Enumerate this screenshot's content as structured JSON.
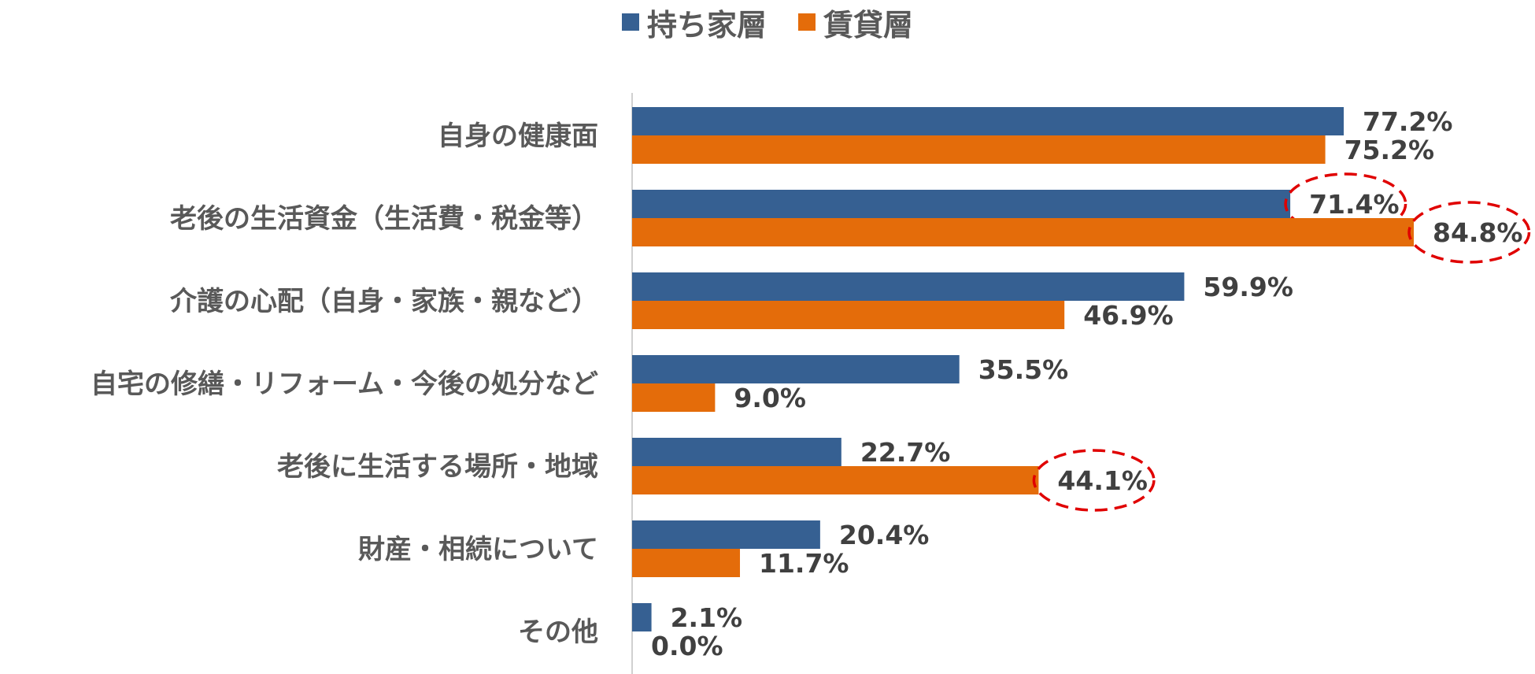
{
  "chart_data": {
    "type": "bar",
    "orientation": "horizontal",
    "categories": [
      "自身の健康面",
      "老後の生活資金（生活費・税金等）",
      "介護の心配（自身・家族・親など）",
      "自宅の修繕・リフォーム・今後の処分など",
      "老後に生活する場所・地域",
      "財産・相続について",
      "その他"
    ],
    "series": [
      {
        "name": "持ち家層",
        "color": "#366092",
        "values": [
          77.2,
          71.4,
          59.9,
          35.5,
          22.7,
          20.4,
          2.1
        ],
        "labels": [
          "77.2%",
          "71.4%",
          "59.9%",
          "35.5%",
          "22.7%",
          "20.4%",
          "2.1%"
        ]
      },
      {
        "name": "賃貸層",
        "color": "#E46C0A",
        "values": [
          75.2,
          84.8,
          46.9,
          9.0,
          44.1,
          11.7,
          0.0
        ],
        "labels": [
          "75.2%",
          "84.8%",
          "46.9%",
          "9.0%",
          "44.1%",
          "11.7%",
          "0.0%"
        ]
      }
    ],
    "xlim": [
      0,
      85
    ],
    "legend_position": "top",
    "grid": false,
    "highlighted": [
      {
        "series": 0,
        "index": 1
      },
      {
        "series": 1,
        "index": 1
      },
      {
        "series": 1,
        "index": 4
      }
    ],
    "highlight_color": "#E00000"
  }
}
